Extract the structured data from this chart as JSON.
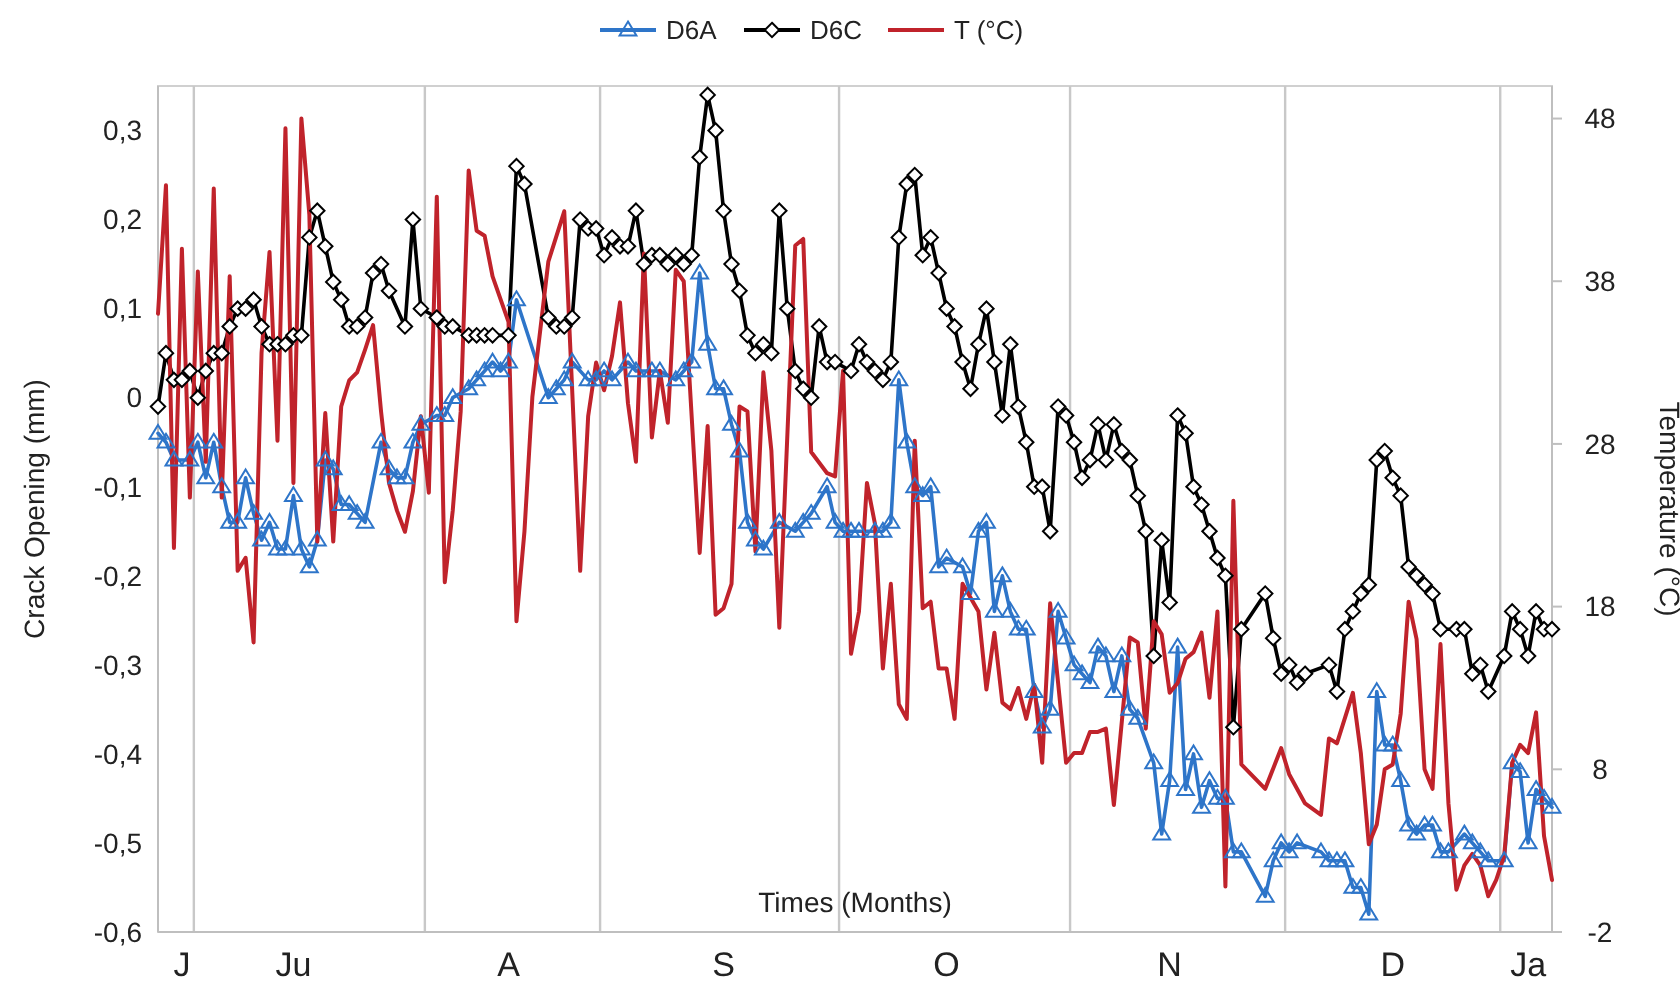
{
  "chart_data": {
    "type": "line",
    "xlabel": "Times (Months)",
    "ylabel": "Crack Opening (mm)",
    "y2label": "Temperature (°C)",
    "categories": [
      null,
      null,
      null,
      "J",
      null,
      null,
      null,
      null,
      null,
      null,
      null,
      null,
      null,
      null,
      null,
      null,
      null,
      "Ju",
      null,
      null,
      null,
      null,
      null,
      null,
      null,
      null,
      null,
      null,
      null,
      null,
      null,
      null,
      null,
      null,
      null,
      null,
      null,
      null,
      null,
      null,
      null,
      null,
      null,
      null,
      "A",
      null,
      null,
      null,
      null,
      null,
      null,
      null,
      null,
      null,
      null,
      null,
      null,
      null,
      null,
      null,
      null,
      null,
      null,
      null,
      null,
      null,
      null,
      null,
      null,
      null,
      null,
      "S",
      null,
      null,
      null,
      null,
      null,
      null,
      null,
      null,
      null,
      null,
      null,
      null,
      null,
      null,
      null,
      null,
      null,
      null,
      null,
      null,
      null,
      null,
      null,
      null,
      null,
      null,
      null,
      "O",
      null,
      null,
      null,
      null,
      null,
      null,
      null,
      null,
      null,
      null,
      null,
      null,
      null,
      null,
      null,
      null,
      null,
      null,
      null,
      null,
      null,
      null,
      null,
      null,
      null,
      null,
      null,
      "N",
      null,
      null,
      null,
      null,
      null,
      null,
      null,
      null,
      null,
      null,
      null,
      null,
      null,
      null,
      null,
      null,
      null,
      null,
      null,
      null,
      null,
      null,
      null,
      null,
      null,
      null,
      null,
      "D",
      null,
      null,
      null,
      null,
      null,
      null,
      null,
      null,
      null,
      null,
      null,
      null,
      null,
      null,
      null,
      null,
      "Ja",
      null,
      null,
      null
    ],
    "ylim": [
      -0.6,
      0.35
    ],
    "yticks": [
      {
        "value": -0.6,
        "label": "-0,6"
      },
      {
        "value": -0.5,
        "label": "-0,5"
      },
      {
        "value": -0.4,
        "label": "-0,4"
      },
      {
        "value": -0.3,
        "label": "-0,3"
      },
      {
        "value": -0.2,
        "label": "-0,2"
      },
      {
        "value": -0.1,
        "label": "-0,1"
      },
      0,
      {
        "value": 0.1,
        "label": "0,1"
      },
      {
        "value": 0.2,
        "label": "0,2"
      },
      {
        "value": 0.3,
        "label": "0,3"
      }
    ],
    "y2lim": [
      -2,
      50
    ],
    "y2ticks": [
      -2,
      8,
      18,
      28,
      38,
      48
    ],
    "legend": "top",
    "series": [
      {
        "name": "D6A",
        "color": "#2e75c9",
        "marker": "triangle",
        "values": [
          -0.04,
          -0.05,
          -0.07,
          null,
          -0.07,
          -0.05,
          -0.09,
          -0.05,
          -0.1,
          -0.14,
          -0.14,
          -0.09,
          -0.13,
          -0.16,
          -0.14,
          -0.17,
          -0.17,
          -0.11,
          -0.17,
          -0.19,
          -0.16,
          -0.07,
          -0.08,
          -0.12,
          -0.12,
          -0.13,
          -0.14,
          null,
          -0.05,
          -0.08,
          -0.09,
          -0.09,
          -0.05,
          -0.03,
          null,
          -0.02,
          -0.02,
          0.0,
          null,
          0.01,
          0.02,
          0.03,
          0.04,
          0.03,
          0.04,
          0.11,
          null,
          null,
          null,
          0.0,
          0.01,
          0.02,
          0.04,
          null,
          0.02,
          0.02,
          0.03,
          0.02,
          null,
          0.04,
          0.03,
          null,
          0.03,
          0.03,
          null,
          0.02,
          0.03,
          0.04,
          0.14,
          0.06,
          0.01,
          0.01,
          -0.03,
          -0.06,
          -0.14,
          -0.16,
          -0.17,
          null,
          -0.14,
          null,
          -0.15,
          -0.14,
          -0.13,
          null,
          -0.1,
          -0.14,
          -0.15,
          -0.15,
          -0.15,
          null,
          -0.15,
          -0.15,
          -0.14,
          0.02,
          -0.05,
          -0.1,
          -0.11,
          -0.1,
          -0.19,
          -0.18,
          null,
          -0.19,
          -0.22,
          -0.15,
          -0.14,
          -0.24,
          -0.2,
          -0.24,
          -0.26,
          -0.26,
          -0.33,
          -0.37,
          -0.35,
          -0.24,
          -0.27,
          -0.3,
          -0.31,
          -0.32,
          -0.28,
          -0.29,
          -0.33,
          -0.29,
          -0.35,
          -0.36,
          null,
          -0.41,
          -0.49,
          -0.43,
          -0.28,
          -0.44,
          -0.4,
          -0.46,
          -0.43,
          -0.45,
          -0.45,
          -0.51,
          -0.51,
          null,
          null,
          -0.56,
          -0.52,
          -0.5,
          -0.51,
          -0.5,
          null,
          null,
          -0.51,
          -0.52,
          -0.52,
          -0.52,
          -0.55,
          -0.55,
          -0.58,
          -0.33,
          -0.39,
          -0.39,
          -0.43,
          -0.48,
          -0.49,
          -0.48,
          -0.48,
          -0.51,
          -0.51,
          null,
          -0.49,
          -0.5,
          -0.51,
          -0.52,
          null,
          -0.52,
          -0.41,
          -0.42,
          -0.5,
          -0.44,
          -0.45,
          -0.46
        ]
      },
      {
        "name": "D6C",
        "color": "#000000",
        "marker": "diamond",
        "values": [
          -0.01,
          0.05,
          0.02,
          0.02,
          0.03,
          0.0,
          0.03,
          0.05,
          0.05,
          0.08,
          0.1,
          0.1,
          0.11,
          0.08,
          0.06,
          0.06,
          0.06,
          0.07,
          0.07,
          0.18,
          0.21,
          0.17,
          0.13,
          0.11,
          0.08,
          0.08,
          0.09,
          0.14,
          0.15,
          0.12,
          null,
          0.08,
          0.2,
          0.1,
          null,
          0.09,
          0.08,
          0.08,
          null,
          0.07,
          0.07,
          0.07,
          0.07,
          null,
          0.07,
          0.26,
          0.24,
          null,
          null,
          0.09,
          0.08,
          0.08,
          0.09,
          0.2,
          0.19,
          0.19,
          0.16,
          0.18,
          0.17,
          0.17,
          0.21,
          0.15,
          0.16,
          0.16,
          0.15,
          0.16,
          0.15,
          0.16,
          0.27,
          0.34,
          0.3,
          0.21,
          0.15,
          0.12,
          0.07,
          0.05,
          0.06,
          0.05,
          0.21,
          0.1,
          0.03,
          0.01,
          0.0,
          0.08,
          0.04,
          0.04,
          null,
          0.03,
          0.06,
          0.04,
          0.03,
          0.02,
          0.04,
          0.18,
          0.24,
          0.25,
          0.16,
          0.18,
          0.14,
          0.1,
          0.08,
          0.04,
          0.01,
          0.06,
          0.1,
          0.04,
          -0.02,
          0.06,
          -0.01,
          -0.05,
          -0.1,
          -0.1,
          -0.15,
          -0.01,
          -0.02,
          -0.05,
          -0.09,
          -0.07,
          -0.03,
          -0.07,
          -0.03,
          -0.06,
          -0.07,
          -0.11,
          -0.15,
          -0.29,
          -0.16,
          -0.23,
          -0.02,
          -0.04,
          -0.1,
          -0.12,
          -0.15,
          -0.18,
          -0.2,
          -0.37,
          -0.26,
          null,
          null,
          -0.22,
          -0.27,
          -0.31,
          -0.3,
          -0.32,
          -0.31,
          null,
          null,
          -0.3,
          -0.33,
          -0.26,
          -0.24,
          -0.22,
          -0.21,
          -0.07,
          -0.06,
          -0.09,
          -0.11,
          -0.19,
          -0.2,
          -0.21,
          -0.22,
          -0.26,
          null,
          -0.26,
          -0.26,
          -0.31,
          -0.3,
          -0.33,
          null,
          -0.29,
          -0.24,
          -0.26,
          -0.29,
          -0.24,
          -0.26,
          -0.26
        ]
      },
      {
        "name": "T (°C)",
        "color": "#c0232b",
        "marker": "none",
        "axis": "y2",
        "values": [
          36.0,
          43.9,
          21.6,
          40.0,
          24.7,
          38.6,
          26.9,
          43.7,
          24.7,
          38.3,
          20.2,
          21.0,
          15.8,
          33.6,
          39.8,
          28.2,
          47.4,
          25.6,
          48.0,
          42.1,
          22.0,
          29.9,
          22.0,
          30.3,
          31.9,
          32.4,
          33.8,
          35.3,
          30.0,
          25.6,
          23.9,
          22.6,
          25.1,
          29.7,
          25.0,
          43.2,
          19.5,
          23.9,
          30.0,
          44.8,
          41.1,
          40.8,
          38.3,
          null,
          35.5,
          17.1,
          22.6,
          30.9,
          null,
          39.2,
          null,
          42.3,
          null,
          20.2,
          29.7,
          33.0,
          31.3,
          33.4,
          36.7,
          30.5,
          26.9,
          39.7,
          28.4,
          32.5,
          29.3,
          38.7,
          38.0,
          null,
          21.3,
          29.1,
          17.5,
          17.9,
          19.4,
          30.3,
          30.0,
          21.4,
          32.4,
          27.6,
          16.7,
          null,
          40.2,
          40.6,
          27.5,
          null,
          26.2,
          26.0,
          32.5,
          15.1,
          17.7,
          25.6,
          23.1,
          14.2,
          19.4,
          12.0,
          11.1,
          28.2,
          17.9,
          18.3,
          14.2,
          14.2,
          11.1,
          19.4,
          null,
          17.7,
          12.9,
          16.4,
          12.1,
          11.7,
          13.0,
          11.1,
          13.2,
          8.4,
          18.2,
          13.3,
          8.4,
          9.0,
          9.0,
          10.3,
          10.3,
          10.5,
          5.8,
          null,
          16.1,
          15.8,
          10.5,
          17.1,
          16.3,
          12.7,
          13.3,
          14.8,
          15.2,
          16.4,
          12.4,
          17.7,
          0.8,
          24.5,
          8.3,
          null,
          null,
          6.8,
          null,
          9.3,
          7.7,
          null,
          5.9,
          null,
          5.2,
          9.9,
          9.6,
          null,
          12.7,
          9.0,
          3.4,
          4.6,
          8.0,
          8.3,
          11.4,
          18.3,
          16.0,
          8.0,
          6.8,
          15.7,
          5.9,
          0.6,
          2.1,
          2.8,
          2.1,
          0.2,
          1.2,
          2.7,
          8.4,
          9.5,
          9.0,
          11.5,
          3.9,
          1.2
        ]
      }
    ]
  }
}
